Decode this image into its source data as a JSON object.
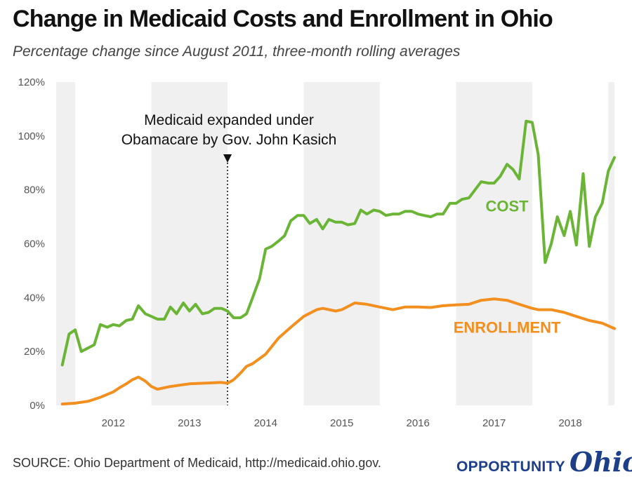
{
  "title": "Change in Medicaid Costs and Enrollment in Ohio",
  "subtitle": "Percentage change since August 2011, three-month rolling averages",
  "source": "SOURCE: Ohio Department of Medicaid, http://medicaid.ohio.gov.",
  "logo": {
    "word1": "OPPORTUNITY",
    "word2": "Ohio"
  },
  "colors": {
    "cost": "#6ab536",
    "enrollment": "#f28f1f",
    "band": "#f0f0f0",
    "logo": "#1d3f8a"
  },
  "chart_data": {
    "type": "line",
    "title": "Change in Medicaid Costs and Enrollment in Ohio",
    "subtitle": "Percentage change since August 2011, three-month rolling averages",
    "ylim": [
      0,
      120
    ],
    "yticks": [
      0,
      20,
      40,
      60,
      80,
      100,
      120
    ],
    "ytick_labels": [
      "0%",
      "20%",
      "40%",
      "60%",
      "80%",
      "100%",
      "120%"
    ],
    "xlim": [
      2011.25,
      2018.58
    ],
    "xtick_labels": [
      {
        "label": "2012",
        "x": 2012.0
      },
      {
        "label": "2013",
        "x": 2013.0
      },
      {
        "label": "2014",
        "x": 2014.0
      },
      {
        "label": "2015",
        "x": 2015.0
      },
      {
        "label": "2016",
        "x": 2016.0
      },
      {
        "label": "2017",
        "x": 2017.0
      },
      {
        "label": "2018",
        "x": 2018.0
      }
    ],
    "shaded_years": [
      [
        2011.25,
        2011.5
      ],
      [
        2012.5,
        2013.5
      ],
      [
        2014.5,
        2015.5
      ],
      [
        2016.5,
        2017.5
      ],
      [
        2018.5,
        2018.58
      ]
    ],
    "annotation": {
      "text_line1": "Medicaid expanded under",
      "text_line2": "Obamacare by Gov. John Kasich",
      "x": 2013.5
    },
    "series": [
      {
        "name": "COST",
        "label_x": 2017.17,
        "label_y": 72,
        "points": [
          [
            2011.33,
            15
          ],
          [
            2011.42,
            26.5
          ],
          [
            2011.5,
            28
          ],
          [
            2011.58,
            20
          ],
          [
            2011.75,
            22.5
          ],
          [
            2011.83,
            30
          ],
          [
            2011.92,
            29
          ],
          [
            2012.0,
            30
          ],
          [
            2012.08,
            29.5
          ],
          [
            2012.17,
            31.5
          ],
          [
            2012.25,
            32
          ],
          [
            2012.33,
            37
          ],
          [
            2012.42,
            34
          ],
          [
            2012.5,
            33
          ],
          [
            2012.58,
            32
          ],
          [
            2012.67,
            32
          ],
          [
            2012.75,
            36.5
          ],
          [
            2012.83,
            34
          ],
          [
            2012.92,
            38
          ],
          [
            2013.0,
            35
          ],
          [
            2013.08,
            37.5
          ],
          [
            2013.17,
            34
          ],
          [
            2013.25,
            34.5
          ],
          [
            2013.33,
            36
          ],
          [
            2013.42,
            36
          ],
          [
            2013.5,
            35
          ],
          [
            2013.58,
            32.5
          ],
          [
            2013.67,
            32.5
          ],
          [
            2013.75,
            34
          ],
          [
            2013.83,
            40
          ],
          [
            2013.92,
            47
          ],
          [
            2014.0,
            58
          ],
          [
            2014.08,
            59
          ],
          [
            2014.17,
            61
          ],
          [
            2014.25,
            63
          ],
          [
            2014.33,
            68.5
          ],
          [
            2014.42,
            70.5
          ],
          [
            2014.5,
            70.5
          ],
          [
            2014.58,
            67.5
          ],
          [
            2014.67,
            69
          ],
          [
            2014.75,
            65.5
          ],
          [
            2014.83,
            69
          ],
          [
            2014.92,
            68
          ],
          [
            2015.0,
            68
          ],
          [
            2015.08,
            67
          ],
          [
            2015.17,
            67.5
          ],
          [
            2015.25,
            72.5
          ],
          [
            2015.33,
            71
          ],
          [
            2015.42,
            72.5
          ],
          [
            2015.5,
            72
          ],
          [
            2015.58,
            70.5
          ],
          [
            2015.67,
            71
          ],
          [
            2015.75,
            71
          ],
          [
            2015.83,
            72
          ],
          [
            2015.92,
            72
          ],
          [
            2016.0,
            71
          ],
          [
            2016.08,
            70.5
          ],
          [
            2016.17,
            70
          ],
          [
            2016.25,
            71
          ],
          [
            2016.33,
            71
          ],
          [
            2016.42,
            75
          ],
          [
            2016.5,
            75
          ],
          [
            2016.58,
            76.5
          ],
          [
            2016.67,
            77
          ],
          [
            2016.75,
            80
          ],
          [
            2016.83,
            83
          ],
          [
            2016.92,
            82.5
          ],
          [
            2017.0,
            82.5
          ],
          [
            2017.08,
            85
          ],
          [
            2017.17,
            89.5
          ],
          [
            2017.25,
            87.5
          ],
          [
            2017.33,
            84
          ],
          [
            2017.42,
            105.5
          ],
          [
            2017.5,
            105
          ],
          [
            2017.58,
            93
          ],
          [
            2017.67,
            53
          ],
          [
            2017.75,
            60
          ],
          [
            2017.83,
            70
          ],
          [
            2017.92,
            63
          ],
          [
            2018.0,
            72
          ],
          [
            2018.08,
            59.5
          ],
          [
            2018.17,
            86
          ],
          [
            2018.25,
            59
          ],
          [
            2018.33,
            70
          ],
          [
            2018.42,
            75
          ],
          [
            2018.5,
            87
          ],
          [
            2018.58,
            92
          ]
        ]
      },
      {
        "name": "ENROLLMENT",
        "label_x": 2017.17,
        "label_y": 27,
        "points": [
          [
            2011.33,
            0.5
          ],
          [
            2011.5,
            0.8
          ],
          [
            2011.67,
            1.5
          ],
          [
            2011.83,
            3
          ],
          [
            2012.0,
            5
          ],
          [
            2012.08,
            6.5
          ],
          [
            2012.17,
            8
          ],
          [
            2012.25,
            9.5
          ],
          [
            2012.33,
            10.5
          ],
          [
            2012.42,
            9
          ],
          [
            2012.5,
            7
          ],
          [
            2012.58,
            6
          ],
          [
            2012.75,
            7
          ],
          [
            2013.0,
            8
          ],
          [
            2013.25,
            8.3
          ],
          [
            2013.42,
            8.5
          ],
          [
            2013.5,
            8.2
          ],
          [
            2013.58,
            9.5
          ],
          [
            2013.67,
            12
          ],
          [
            2013.75,
            14.5
          ],
          [
            2013.83,
            15.5
          ],
          [
            2014.0,
            19
          ],
          [
            2014.17,
            25
          ],
          [
            2014.33,
            29
          ],
          [
            2014.5,
            33
          ],
          [
            2014.67,
            35.5
          ],
          [
            2014.75,
            36
          ],
          [
            2014.92,
            35
          ],
          [
            2015.0,
            35.5
          ],
          [
            2015.17,
            38
          ],
          [
            2015.33,
            37.5
          ],
          [
            2015.5,
            36.5
          ],
          [
            2015.67,
            35.5
          ],
          [
            2015.83,
            36.5
          ],
          [
            2016.0,
            36.5
          ],
          [
            2016.17,
            36.3
          ],
          [
            2016.33,
            37
          ],
          [
            2016.5,
            37.3
          ],
          [
            2016.67,
            37.5
          ],
          [
            2016.83,
            39
          ],
          [
            2017.0,
            39.5
          ],
          [
            2017.17,
            39
          ],
          [
            2017.33,
            37.5
          ],
          [
            2017.5,
            36
          ],
          [
            2017.58,
            35.5
          ],
          [
            2017.75,
            35.5
          ],
          [
            2017.92,
            34.5
          ],
          [
            2018.08,
            33
          ],
          [
            2018.25,
            31.5
          ],
          [
            2018.42,
            30.5
          ],
          [
            2018.58,
            28.5
          ]
        ]
      }
    ]
  }
}
